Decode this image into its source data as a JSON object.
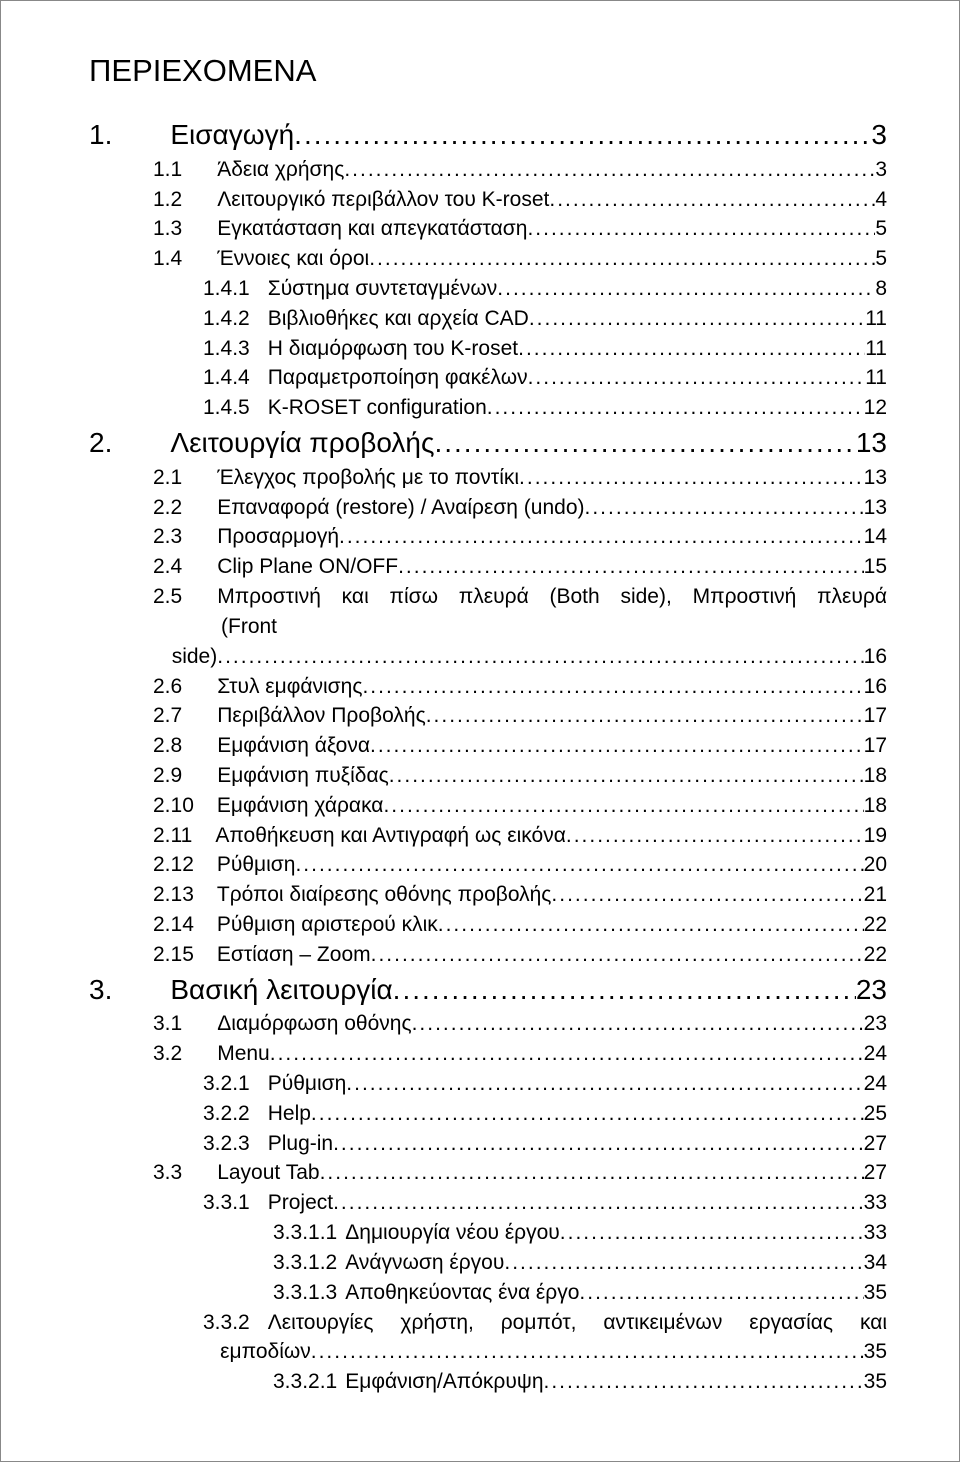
{
  "page_title": "ΠΕΡΙΕΧΟΜΕΝΑ",
  "entries": [
    {
      "level": 0,
      "big": true,
      "num": "1.",
      "text": "Εισαγωγή",
      "page": "3",
      "gap_after_num": 58
    },
    {
      "level": 1,
      "num": "1.1",
      "text": "Άδεια χρήσης",
      "page": "3",
      "gap_after_num": 35
    },
    {
      "level": 1,
      "num": "1.2",
      "text": "Λειτουργικό περιβάλλον του K-roset",
      "page": "4",
      "gap_after_num": 35
    },
    {
      "level": 1,
      "num": "1.3",
      "text": "Εγκατάσταση και απεγκατάσταση",
      "page": "5",
      "gap_after_num": 35
    },
    {
      "level": 1,
      "num": "1.4",
      "text": "Έννοιες και όροι",
      "page": "5",
      "gap_after_num": 35
    },
    {
      "level": 2,
      "num": "1.4.1",
      "text": "Σύστημα συντεταγμένων",
      "page": "8",
      "gap_after_num": 18
    },
    {
      "level": 2,
      "num": "1.4.2",
      "text": "Βιβλιοθήκες και αρχεία CAD",
      "page": "11",
      "gap_after_num": 18
    },
    {
      "level": 2,
      "num": "1.4.3",
      "text": "Η διαμόρφωση του K-roset",
      "page": "11",
      "gap_after_num": 18
    },
    {
      "level": 2,
      "num": "1.4.4",
      "text": "Παραμετροποίηση φακέλων",
      "page": "11",
      "gap_after_num": 18
    },
    {
      "level": 2,
      "num": "1.4.5",
      "text": "K-ROSET configuration",
      "page": "12",
      "gap_after_num": 18
    },
    {
      "level": 0,
      "big": true,
      "num": "2.",
      "text": "Λειτουργία προβολής",
      "page": "13",
      "gap_after_num": 58
    },
    {
      "level": 1,
      "num": "2.1",
      "text": "Έλεγχος προβολής με το ποντίκι",
      "page": "13",
      "gap_after_num": 35
    },
    {
      "level": 1,
      "num": "2.2",
      "text": "Επαναφορά (restore) / Αναίρεση (undo)",
      "page": "13",
      "gap_after_num": 35
    },
    {
      "level": 1,
      "num": "2.3",
      "text": "Προσαρμογή",
      "page": "14",
      "gap_after_num": 35
    },
    {
      "level": 1,
      "num": "2.4",
      "text": "Clip Plane ON/OFF",
      "page": "15",
      "gap_after_num": 35
    },
    {
      "level": 1,
      "num": "2.5",
      "text_multi": [
        "Μπροστινή και πίσω πλευρά (Both side), Μπροστινή πλευρά",
        "(Front",
        "side)"
      ],
      "page": "16",
      "gap_after_num": 35
    },
    {
      "level": 1,
      "num": "2.6",
      "text": "Στυλ εμφάνισης",
      "page": "16",
      "gap_after_num": 35
    },
    {
      "level": 1,
      "num": "2.7",
      "text": "Περιβάλλον Προβολής",
      "page": "17",
      "gap_after_num": 35
    },
    {
      "level": 1,
      "num": "2.8",
      "text": "Εμφάνιση άξονα",
      "page": "17",
      "gap_after_num": 35
    },
    {
      "level": 1,
      "num": "2.9",
      "text": "Εμφάνιση πυξίδας",
      "page": "18",
      "gap_after_num": 35
    },
    {
      "level": 1,
      "num": "2.10",
      "text": "Εμφάνιση χάρακα",
      "page": "18",
      "gap_after_num": 23
    },
    {
      "level": 1,
      "num": "2.11",
      "text": "Αποθήκευση και Αντιγραφή ως εικόνα",
      "page": "19",
      "gap_after_num": 23
    },
    {
      "level": 1,
      "num": "2.12",
      "text": "Ρύθμιση",
      "page": "20",
      "gap_after_num": 23
    },
    {
      "level": 1,
      "num": "2.13",
      "text": "Τρόποι διαίρεσης οθόνης προβολής",
      "page": "21",
      "gap_after_num": 23
    },
    {
      "level": 1,
      "num": "2.14",
      "text": "Ρύθμιση αριστερού κλικ",
      "page": "22",
      "gap_after_num": 23
    },
    {
      "level": 1,
      "num": "2.15",
      "text": "Εστίαση – Zoom",
      "page": "22",
      "gap_after_num": 23
    },
    {
      "level": 0,
      "big": true,
      "num": "3.",
      "text": "Βασική λειτουργία",
      "page": "23",
      "gap_after_num": 58
    },
    {
      "level": 1,
      "num": "3.1",
      "text": "Διαμόρφωση οθόνης",
      "page": "23",
      "gap_after_num": 35
    },
    {
      "level": 1,
      "num": "3.2",
      "text": "Menu",
      "page": "24",
      "gap_after_num": 35
    },
    {
      "level": 2,
      "num": "3.2.1",
      "text": "Ρύθμιση",
      "page": "24",
      "gap_after_num": 18
    },
    {
      "level": 2,
      "num": "3.2.2",
      "text": "Help",
      "page": "25",
      "gap_after_num": 18
    },
    {
      "level": 2,
      "num": "3.2.3",
      "text": "Plug-in",
      "page": "27",
      "gap_after_num": 18
    },
    {
      "level": 1,
      "num": "3.3",
      "text": "Layout Tab",
      "page": "27",
      "gap_after_num": 35
    },
    {
      "level": 2,
      "num": "3.3.1",
      "text": "Project",
      "page": "33",
      "gap_after_num": 18
    },
    {
      "level": 3,
      "num": "3.3.1.1",
      "text": "Δημιουργία νέου έργου",
      "page": "33",
      "gap_after_num": 8
    },
    {
      "level": 3,
      "num": "3.3.1.2",
      "text": "Ανάγνωση έργου",
      "page": "34",
      "gap_after_num": 8
    },
    {
      "level": 3,
      "num": "3.3.1.3",
      "text": "Αποθηκεύοντας ένα έργο",
      "page": "35",
      "gap_after_num": 8
    },
    {
      "level": 2,
      "num": "3.3.2",
      "text_multi": [
        "Λειτουργίες χρήστη, ρομπότ, αντικειμένων εργασίας και",
        "εμποδίων"
      ],
      "page": "35",
      "gap_after_num": 18
    },
    {
      "level": 3,
      "num": "3.3.2.1",
      "text": "Εμφάνιση/Απόκρυψη",
      "page": "35",
      "gap_after_num": 8
    }
  ]
}
